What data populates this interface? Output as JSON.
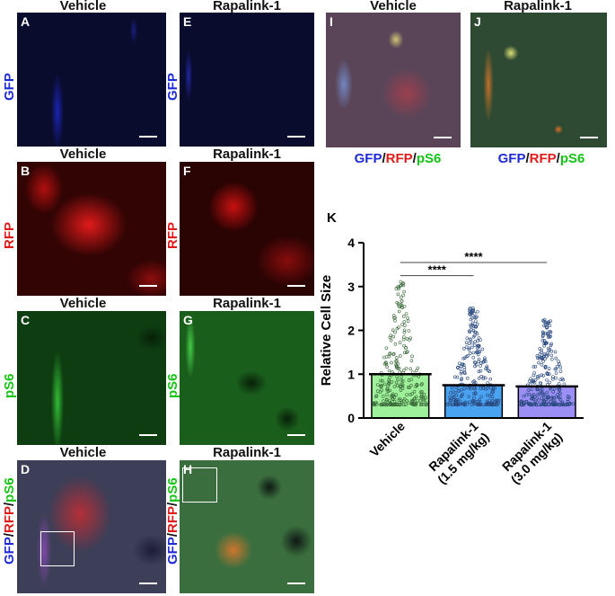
{
  "columns": {
    "left": "Vehicle",
    "right": "Rapalink-1"
  },
  "panels": {
    "A": {
      "letter": "A",
      "title": "Vehicle"
    },
    "B": {
      "letter": "B",
      "title": "Vehicle"
    },
    "C": {
      "letter": "C",
      "title": "Vehicle"
    },
    "D": {
      "letter": "D",
      "title": "Vehicle"
    },
    "E": {
      "letter": "E",
      "title": "Rapalink-1"
    },
    "F": {
      "letter": "F",
      "title": "Rapalink-1"
    },
    "G": {
      "letter": "G",
      "title": "Rapalink-1"
    },
    "H": {
      "letter": "H",
      "title": "Rapalink-1"
    },
    "I": {
      "letter": "I",
      "title": "Vehicle"
    },
    "J": {
      "letter": "J",
      "title": "Rapalink-1"
    },
    "K": {
      "letter": "K"
    }
  },
  "rows": {
    "gfp": "GFP",
    "rfp": "RFP",
    "ps6": "pS6",
    "merge": {
      "gfp": "GFP",
      "sep1": "/",
      "rfp": "RFP",
      "sep2": "/",
      "ps6": "pS6"
    }
  },
  "colors": {
    "gfp": "#1f2bd6",
    "rfp": "#e11a1a",
    "ps6": "#14c414"
  },
  "chart_data": {
    "type": "bar",
    "ylabel": "Relative Cell Size",
    "ylim": [
      0,
      4
    ],
    "yticks": [
      "0",
      "1",
      "2",
      "3",
      "4"
    ],
    "categories": [
      "Vehicle",
      "Rapalink-1 (1.5 mg/kg)",
      "Rapalink-1 (3.0 mg/kg)"
    ],
    "category_lines": [
      [
        "Vehicle"
      ],
      [
        "Rapalink-1",
        "(1.5 mg/kg)"
      ],
      [
        "Rapalink-1",
        "(3.0 mg/kg)"
      ]
    ],
    "values": [
      1.0,
      0.75,
      0.72
    ],
    "bar_colors": [
      "#9ef09a",
      "#4aa3f0",
      "#9b8ef5"
    ],
    "scatter_ranges": [
      [
        0.3,
        3.3
      ],
      [
        0.3,
        2.55
      ],
      [
        0.3,
        2.25
      ]
    ],
    "significance": [
      {
        "from": 0,
        "to": 1,
        "label": "****"
      },
      {
        "from": 0,
        "to": 2,
        "label": "****"
      }
    ]
  }
}
